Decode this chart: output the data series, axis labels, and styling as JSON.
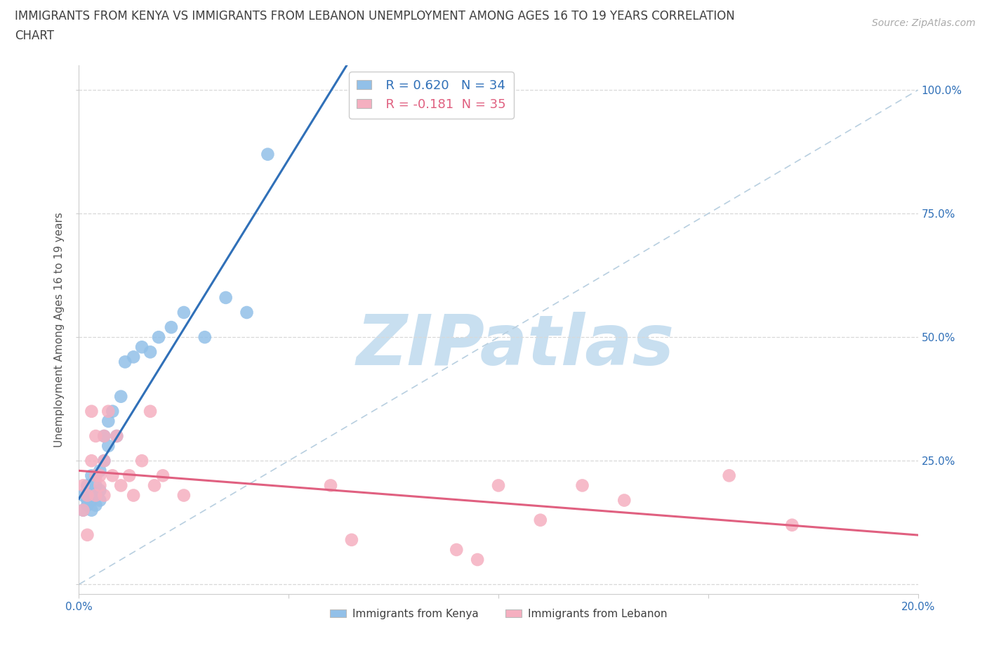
{
  "title_line1": "IMMIGRANTS FROM KENYA VS IMMIGRANTS FROM LEBANON UNEMPLOYMENT AMONG AGES 16 TO 19 YEARS CORRELATION",
  "title_line2": "CHART",
  "source_text": "Source: ZipAtlas.com",
  "ylabel": "Unemployment Among Ages 16 to 19 years",
  "xlim": [
    0.0,
    0.2
  ],
  "ylim": [
    -0.02,
    1.05
  ],
  "plot_ylim": [
    -0.02,
    1.05
  ],
  "display_ylim": [
    0.0,
    1.0
  ],
  "xtick_vals": [
    0.0,
    0.05,
    0.1,
    0.15,
    0.2
  ],
  "xtick_labels": [
    "0.0%",
    "",
    "",
    "",
    "20.0%"
  ],
  "ytick_vals": [
    0.0,
    0.25,
    0.5,
    0.75,
    1.0
  ],
  "ytick_labels_right": [
    "",
    "25.0%",
    "50.0%",
    "75.0%",
    "100.0%"
  ],
  "kenya_color": "#92c0e8",
  "lebanon_color": "#f5afc0",
  "kenya_line_color": "#3070b8",
  "lebanon_line_color": "#e06080",
  "ref_line_color": "#b8cfe0",
  "watermark_color": "#c8dff0",
  "watermark_text": "ZIPatlas",
  "legend_label_kenya": "Immigrants from Kenya",
  "legend_label_lebanon": "Immigrants from Lebanon",
  "kenya_x": [
    0.001,
    0.001,
    0.002,
    0.002,
    0.002,
    0.003,
    0.003,
    0.003,
    0.003,
    0.004,
    0.004,
    0.004,
    0.004,
    0.005,
    0.005,
    0.005,
    0.006,
    0.006,
    0.007,
    0.007,
    0.008,
    0.009,
    0.01,
    0.011,
    0.013,
    0.015,
    0.017,
    0.019,
    0.022,
    0.025,
    0.03,
    0.035,
    0.04,
    0.045
  ],
  "kenya_y": [
    0.18,
    0.15,
    0.17,
    0.2,
    0.16,
    0.15,
    0.19,
    0.22,
    0.17,
    0.18,
    0.2,
    0.22,
    0.16,
    0.23,
    0.19,
    0.17,
    0.25,
    0.3,
    0.28,
    0.33,
    0.35,
    0.3,
    0.38,
    0.45,
    0.46,
    0.48,
    0.47,
    0.5,
    0.52,
    0.55,
    0.5,
    0.58,
    0.55,
    0.87
  ],
  "lebanon_x": [
    0.001,
    0.001,
    0.002,
    0.002,
    0.003,
    0.003,
    0.004,
    0.004,
    0.004,
    0.005,
    0.005,
    0.006,
    0.006,
    0.006,
    0.007,
    0.008,
    0.009,
    0.01,
    0.012,
    0.013,
    0.015,
    0.017,
    0.018,
    0.02,
    0.025,
    0.06,
    0.065,
    0.09,
    0.095,
    0.1,
    0.11,
    0.12,
    0.13,
    0.155,
    0.17
  ],
  "lebanon_y": [
    0.2,
    0.15,
    0.18,
    0.1,
    0.35,
    0.25,
    0.3,
    0.18,
    0.22,
    0.2,
    0.22,
    0.18,
    0.25,
    0.3,
    0.35,
    0.22,
    0.3,
    0.2,
    0.22,
    0.18,
    0.25,
    0.35,
    0.2,
    0.22,
    0.18,
    0.2,
    0.09,
    0.07,
    0.05,
    0.2,
    0.13,
    0.2,
    0.17,
    0.22,
    0.12
  ],
  "bg_color": "#ffffff",
  "title_color": "#404040",
  "axis_label_color": "#3070b8",
  "ylabel_color": "#555555",
  "grid_color": "#d8d8d8",
  "title_fontsize": 12,
  "label_fontsize": 11,
  "tick_fontsize": 11,
  "legend_fontsize": 13,
  "source_fontsize": 10
}
